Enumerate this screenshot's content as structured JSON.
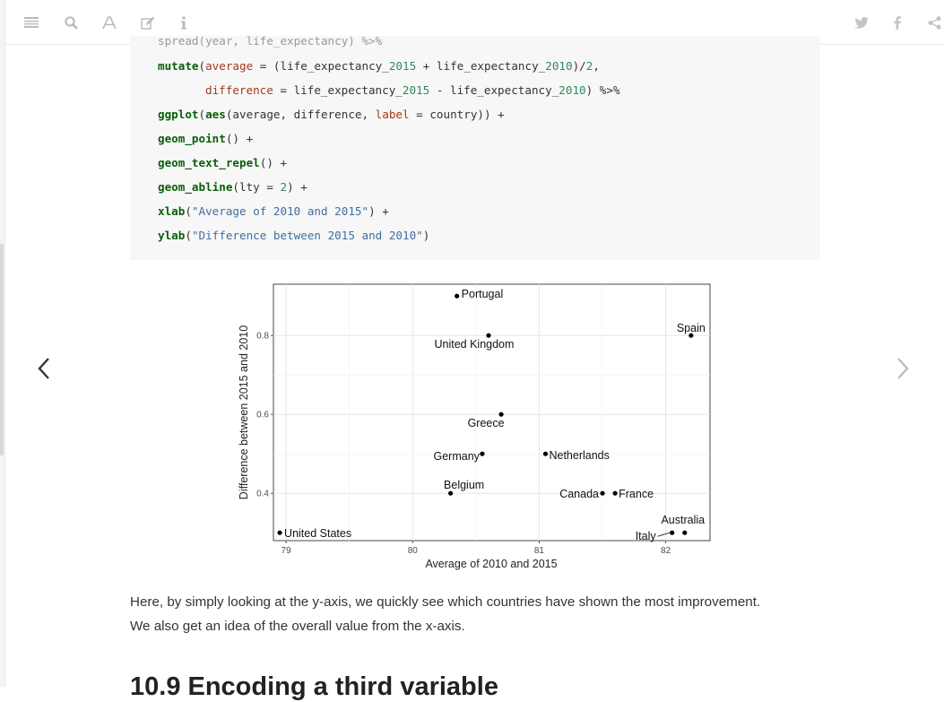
{
  "toolbar": {
    "left_icons": [
      "menu-icon",
      "search-icon",
      "font-icon",
      "edit-icon",
      "info-icon"
    ],
    "right_icons": [
      "twitter-icon",
      "facebook-icon",
      "share-icon"
    ]
  },
  "code": {
    "line0": "spread(year, life_expectancy) %>%",
    "l1_fn": "mutate",
    "l1_a": "(",
    "l1_kw": "average",
    "l1_b": " = (life_expectancy_",
    "l1_n1": "2015",
    "l1_c": " + life_expectancy_",
    "l1_n2": "2010",
    "l1_d": ")/",
    "l1_n3": "2",
    "l1_e": ",",
    "l2_kw": "difference",
    "l2_a": " = life_expectancy_",
    "l2_n1": "2015",
    "l2_b": " - life_expectancy_",
    "l2_n2": "2010",
    "l2_c": ") %>%",
    "l3_fn": "ggplot",
    "l3_a": "(",
    "l3_fn2": "aes",
    "l3_b": "(average, difference, ",
    "l3_kw": "label",
    "l3_c": " = country)) +",
    "l4_fn": "geom_point",
    "l4_a": "() +",
    "l5_fn": "geom_text_repel",
    "l5_a": "() +",
    "l6_fn": "geom_abline",
    "l6_a": "(lty = ",
    "l6_n": "2",
    "l6_b": ") +",
    "l7_fn": "xlab",
    "l7_a": "(",
    "l7_s": "\"Average of 2010 and 2015\"",
    "l7_b": ") +",
    "l8_fn": "ylab",
    "l8_a": "(",
    "l8_s": "\"Difference between 2015 and 2010\"",
    "l8_b": ")"
  },
  "chart_data": {
    "type": "scatter",
    "xlabel": "Average of 2010 and 2015",
    "ylabel": "Difference between 2015 and 2010",
    "xlim": [
      78.9,
      82.35
    ],
    "ylim": [
      0.28,
      0.93
    ],
    "xticks": [
      79,
      80,
      81,
      82
    ],
    "yticks": [
      0.4,
      0.6,
      0.8
    ],
    "ytick_labels": [
      "0.4",
      "0.6",
      "0.8"
    ],
    "grid": true,
    "points": [
      {
        "label": "Portugal",
        "x": 80.35,
        "y": 0.9
      },
      {
        "label": "United Kingdom",
        "x": 80.6,
        "y": 0.8
      },
      {
        "label": "Spain",
        "x": 82.2,
        "y": 0.8
      },
      {
        "label": "Greece",
        "x": 80.7,
        "y": 0.6
      },
      {
        "label": "Germany",
        "x": 80.55,
        "y": 0.5
      },
      {
        "label": "Netherlands",
        "x": 81.05,
        "y": 0.5
      },
      {
        "label": "Belgium",
        "x": 80.3,
        "y": 0.4
      },
      {
        "label": "Canada",
        "x": 81.5,
        "y": 0.4
      },
      {
        "label": "France",
        "x": 81.6,
        "y": 0.4
      },
      {
        "label": "United States",
        "x": 78.95,
        "y": 0.3
      },
      {
        "label": "Italy",
        "x": 82.05,
        "y": 0.3
      },
      {
        "label": "Australia",
        "x": 82.15,
        "y": 0.3
      }
    ]
  },
  "paragraph": {
    "line1": "Here, by simply looking at the y-axis, we quickly see which countries have shown the most improvement.",
    "line2": "We also get an idea of the overall value from the x-axis."
  },
  "next_section_heading": "10.9   Encoding a third variable"
}
